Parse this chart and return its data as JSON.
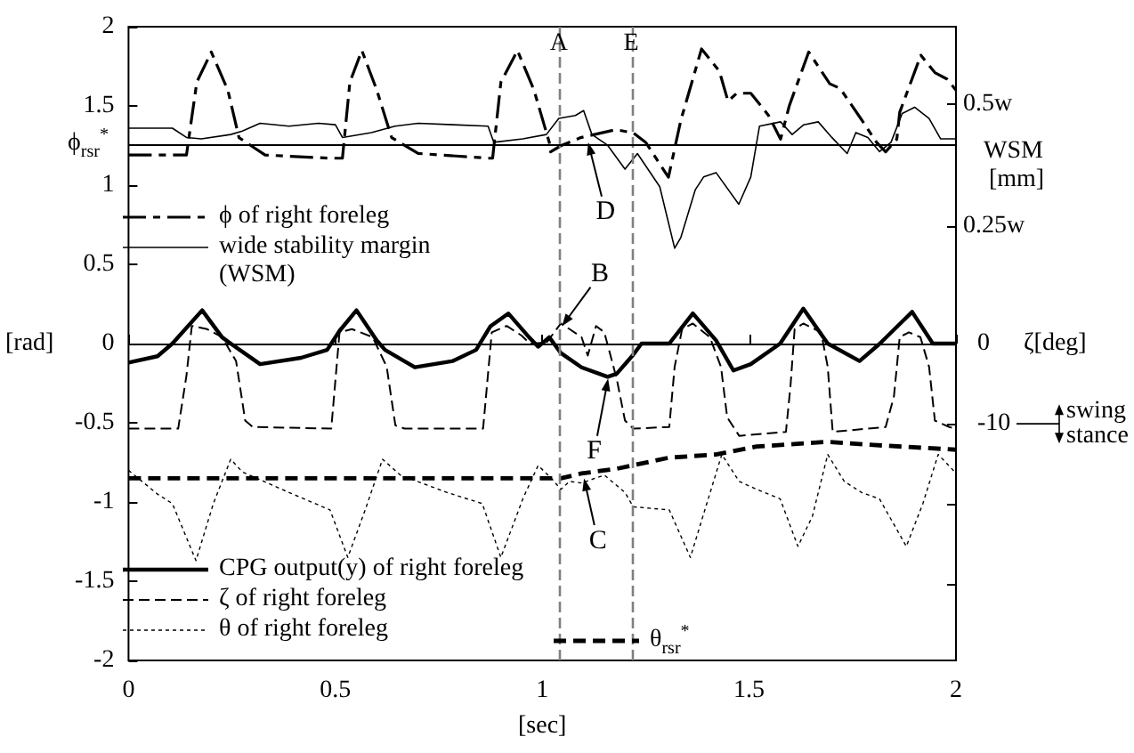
{
  "chart_data": {
    "type": "line",
    "xlabel": "[sec]",
    "ylabel": "[rad]",
    "y2label": "WSM [mm]",
    "y3label": "ζ[deg]",
    "xlim": [
      0,
      2
    ],
    "xticks": [
      0,
      0.5,
      1,
      1.5,
      2
    ],
    "ylim": [
      -2,
      2
    ],
    "yticks": [
      -2,
      -1.5,
      -1,
      -0.5,
      0,
      0.5,
      1,
      1.5,
      2
    ],
    "y2lim": [
      -0.64,
      0.659
    ],
    "y2ticks": [
      {
        "value": 0.5,
        "label": "0.5w"
      },
      {
        "value": 0.25,
        "label": "0.25w"
      }
    ],
    "y3lim": [
      -39.5,
      39.5
    ],
    "y3ticks": [
      0,
      -10,
      {
        "value": -20,
        "label": null
      },
      {
        "value": -30,
        "label": null
      }
    ],
    "legend": "left",
    "marker": "none",
    "series": [
      {
        "name": "ϕ of right foreleg",
        "color": "#000000",
        "line_style": "dashed",
        "x": [
          0,
          0.14,
          0.165,
          0.2,
          0.24,
          0.267,
          0.33,
          0.487,
          0.517,
          0.535,
          0.564,
          0.6,
          0.636,
          0.7,
          0.869,
          0.88,
          0.9,
          0.94,
          0.98,
          1.017,
          1.02,
          1.046,
          1.093,
          1.178,
          1.22,
          1.25,
          1.305,
          1.335,
          1.385,
          1.428,
          1.449,
          1.47,
          1.504,
          1.547,
          1.576,
          1.597,
          1.644,
          1.695,
          1.72,
          1.77,
          1.808,
          1.83,
          1.857,
          1.864,
          1.915,
          1.949,
          1.978,
          2.0
        ],
        "values": [
          1.19,
          1.19,
          1.65,
          1.84,
          1.6,
          1.3,
          1.19,
          1.17,
          1.17,
          1.65,
          1.85,
          1.6,
          1.3,
          1.2,
          1.17,
          1.17,
          1.65,
          1.85,
          1.6,
          1.27,
          1.21,
          1.25,
          1.3,
          1.35,
          1.33,
          1.27,
          1.05,
          1.41,
          1.86,
          1.72,
          1.53,
          1.58,
          1.58,
          1.44,
          1.29,
          1.5,
          1.84,
          1.64,
          1.61,
          1.42,
          1.27,
          1.21,
          1.29,
          1.46,
          1.82,
          1.71,
          1.67,
          1.6
        ]
      },
      {
        "name": "wide stability margin (WSM)",
        "color": "#000000",
        "line_style": "solid",
        "axis": "y2",
        "x": [
          0,
          0.106,
          0.14,
          0.176,
          0.247,
          0.275,
          0.318,
          0.388,
          0.459,
          0.5,
          0.517,
          0.587,
          0.644,
          0.7,
          0.784,
          0.869,
          0.883,
          0.953,
          1.01,
          1.04,
          1.08,
          1.1,
          1.12,
          1.158,
          1.2,
          1.23,
          1.284,
          1.32,
          1.335,
          1.37,
          1.39,
          1.42,
          1.475,
          1.504,
          1.525,
          1.576,
          1.604,
          1.632,
          1.667,
          1.7,
          1.737,
          1.758,
          1.787,
          1.815,
          1.843,
          1.87,
          1.9,
          1.935,
          1.963,
          2.0
        ],
        "values": [
          0.451,
          0.451,
          0.432,
          0.429,
          0.438,
          0.445,
          0.461,
          0.455,
          0.461,
          0.458,
          0.432,
          0.442,
          0.455,
          0.461,
          0.458,
          0.455,
          0.422,
          0.429,
          0.438,
          0.471,
          0.477,
          0.487,
          0.438,
          0.416,
          0.367,
          0.399,
          0.331,
          0.205,
          0.227,
          0.325,
          0.351,
          0.36,
          0.295,
          0.351,
          0.455,
          0.464,
          0.438,
          0.458,
          0.464,
          0.432,
          0.399,
          0.442,
          0.432,
          0.403,
          0.422,
          0.481,
          0.494,
          0.471,
          0.429,
          0.429
        ]
      },
      {
        "name": "CPG output(y) of right foreleg",
        "color": "#000000",
        "line_style": "solid",
        "x": [
          0,
          0.07,
          0.106,
          0.178,
          0.226,
          0.247,
          0.318,
          0.417,
          0.48,
          0.51,
          0.551,
          0.6,
          0.62,
          0.692,
          0.784,
          0.84,
          0.875,
          0.918,
          0.968,
          0.99,
          1.017,
          1.045,
          1.095,
          1.158,
          1.18,
          1.22,
          1.24,
          1.307,
          1.364,
          1.42,
          1.462,
          1.504,
          1.575,
          1.631,
          1.69,
          1.767,
          1.816,
          1.894,
          1.944,
          2.0
        ],
        "values": [
          -0.12,
          -0.08,
          0,
          0.21,
          0.04,
          0,
          -0.13,
          -0.09,
          -0.04,
          0.08,
          0.21,
          0.02,
          -0.04,
          -0.15,
          -0.11,
          -0.04,
          0.11,
          0.19,
          0.04,
          -0.02,
          0.04,
          -0.06,
          -0.15,
          -0.21,
          -0.19,
          -0.07,
          0,
          0,
          0.19,
          0.02,
          -0.17,
          -0.13,
          0,
          0.22,
          0,
          -0.11,
          0,
          0.2,
          0,
          0
        ]
      },
      {
        "name": "ζ of right foreleg",
        "color": "#000000",
        "line_style": "dashed",
        "axis": "y3",
        "x": [
          0,
          0.12,
          0.14,
          0.153,
          0.19,
          0.226,
          0.26,
          0.282,
          0.3,
          0.49,
          0.51,
          0.54,
          0.59,
          0.624,
          0.645,
          0.667,
          0.857,
          0.878,
          0.914,
          0.95,
          0.97,
          1.01,
          1.045,
          1.066,
          1.095,
          1.11,
          1.13,
          1.15,
          1.18,
          1.2,
          1.22,
          1.307,
          1.32,
          1.338,
          1.364,
          1.405,
          1.432,
          1.447,
          1.476,
          1.589,
          1.6,
          1.61,
          1.631,
          1.674,
          1.69,
          1.702,
          1.83,
          1.85,
          1.864,
          1.886,
          1.914,
          1.935,
          1.949,
          1.984,
          2.0
        ],
        "values": [
          -10.6,
          -10.6,
          -4,
          2.2,
          1.8,
          0.8,
          -2.2,
          -9.6,
          -10.4,
          -10.6,
          1.4,
          1.8,
          0.8,
          -2.9,
          -10.2,
          -10.6,
          -10.6,
          1.4,
          2.2,
          1.0,
          0,
          0.1,
          2.5,
          1.8,
          0.8,
          -1.5,
          2.2,
          1.4,
          -4.4,
          -9.6,
          -10.6,
          -10.4,
          -2.9,
          1.8,
          2.5,
          0.8,
          -2.9,
          -9.2,
          -11.5,
          -11.0,
          -5.3,
          1.8,
          2.5,
          1.4,
          -2.9,
          -11.0,
          -10.4,
          -6.6,
          0.8,
          1.4,
          0.8,
          -2.9,
          -9.6,
          -10.4,
          -10.6
        ]
      },
      {
        "name": "θ of right foreleg",
        "color": "#000000",
        "line_style": "dotted",
        "x": [
          0,
          0.07,
          0.106,
          0.163,
          0.205,
          0.247,
          0.275,
          0.388,
          0.487,
          0.53,
          0.572,
          0.614,
          0.657,
          0.77,
          0.855,
          0.9,
          0.953,
          0.99,
          1.022,
          1.045,
          1.066,
          1.095,
          1.15,
          1.2,
          1.22,
          1.307,
          1.358,
          1.393,
          1.434,
          1.476,
          1.518,
          1.575,
          1.618,
          1.653,
          1.69,
          1.73,
          1.772,
          1.815,
          1.88,
          1.92,
          1.957,
          1.99,
          2.0
        ],
        "values": [
          -0.8,
          -0.95,
          -1.01,
          -1.37,
          -1.01,
          -0.73,
          -0.81,
          -0.94,
          -1.05,
          -1.35,
          -1.05,
          -0.73,
          -0.83,
          -0.94,
          -1.01,
          -1.35,
          -0.98,
          -0.77,
          -0.85,
          -0.92,
          -0.87,
          -0.88,
          -0.83,
          -0.94,
          -1.03,
          -1.05,
          -1.35,
          -1.05,
          -0.7,
          -0.87,
          -0.92,
          -0.98,
          -1.28,
          -1.09,
          -0.7,
          -0.87,
          -0.94,
          -0.98,
          -1.28,
          -1.01,
          -0.7,
          -0.79,
          -0.82
        ]
      },
      {
        "name": "θ$_{rsr}$$^{*}$",
        "color": "#000000",
        "line_style": "dashed",
        "x": [
          0,
          1.0,
          1.045,
          1.095,
          1.18,
          1.307,
          1.42,
          1.518,
          1.69,
          1.8,
          2.0
        ],
        "values": [
          -0.85,
          -0.85,
          -0.85,
          -0.82,
          -0.79,
          -0.72,
          -0.7,
          -0.65,
          -0.62,
          -0.64,
          -0.67
        ]
      }
    ],
    "ref_lines": [
      {
        "axis": "x",
        "value": 1.04,
        "label": "A",
        "color": "#808080",
        "line_style": "dashed"
      },
      {
        "axis": "x",
        "value": 1.216,
        "label": "E",
        "color": "#808080",
        "line_style": "dashed"
      },
      {
        "axis": "y",
        "value": 0,
        "color": "#000000",
        "line_style": "solid"
      },
      {
        "axis": "y",
        "value": 1.26,
        "label": "ϕ$_{rsr}$$^{*}$",
        "color": "#000000",
        "line_style": "solid"
      }
    ],
    "annotations": [
      {
        "text": "B",
        "x": 1.045,
        "y": 0.1
      },
      {
        "text": "C",
        "x": 1.1,
        "y": -0.84
      },
      {
        "text": "D",
        "x": 1.11,
        "y": 1.28
      },
      {
        "text": "F",
        "x": 1.16,
        "y": -0.21
      },
      "swing",
      "stance"
    ]
  }
}
